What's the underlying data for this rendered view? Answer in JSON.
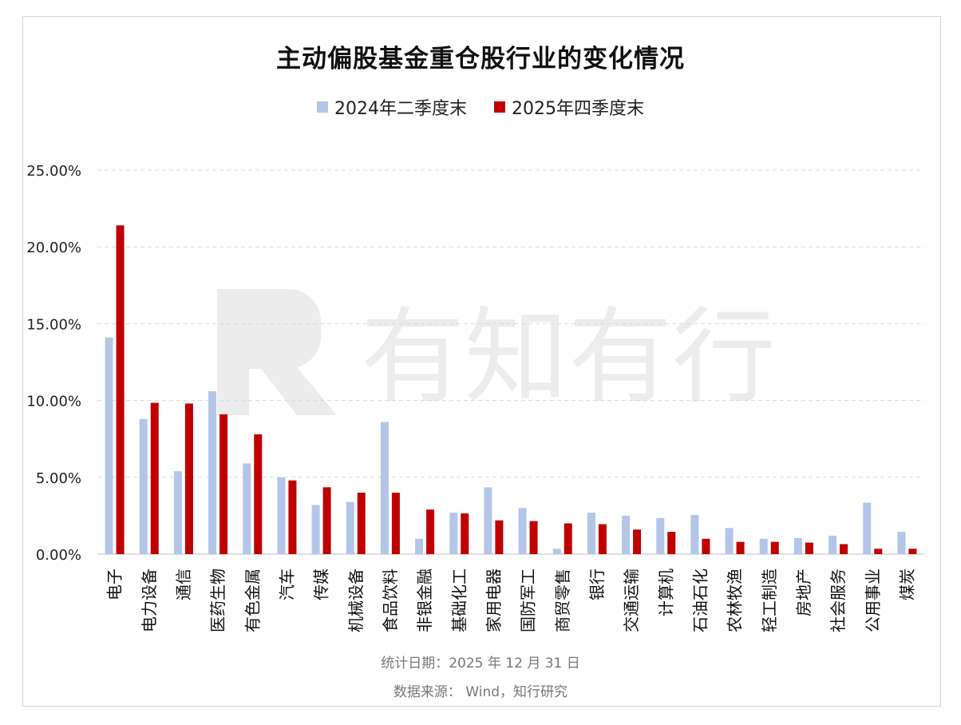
{
  "chart_data": {
    "type": "bar",
    "title": "主动偏股基金重仓股行业的变化情况",
    "categories": [
      "电子",
      "电力设备",
      "通信",
      "医药生物",
      "有色金属",
      "汽车",
      "传媒",
      "机械设备",
      "食品饮料",
      "非银金融",
      "基础化工",
      "家用电器",
      "国防军工",
      "商贸零售",
      "银行",
      "交通运输",
      "计算机",
      "石油石化",
      "农林牧渔",
      "轻工制造",
      "房地产",
      "社会服务",
      "公用事业",
      "煤炭"
    ],
    "series": [
      {
        "name": "2024年二季度末",
        "color": "#b4c6e7",
        "values": [
          14.1,
          8.8,
          5.4,
          10.6,
          5.9,
          5.0,
          3.2,
          3.4,
          8.6,
          1.0,
          2.7,
          4.35,
          3.0,
          0.35,
          2.7,
          2.5,
          2.35,
          2.55,
          1.7,
          1.0,
          1.05,
          1.2,
          3.35,
          1.45
        ]
      },
      {
        "name": "2025年四季度末",
        "color": "#c00000",
        "values": [
          21.4,
          9.85,
          9.8,
          9.1,
          7.8,
          4.8,
          4.35,
          4.0,
          4.0,
          2.9,
          2.65,
          2.2,
          2.15,
          2.0,
          1.95,
          1.6,
          1.45,
          1.0,
          0.8,
          0.8,
          0.75,
          0.65,
          0.35,
          0.35
        ]
      }
    ],
    "yticks": [
      "0.00%",
      "5.00%",
      "10.00%",
      "15.00%",
      "20.00%",
      "25.00%"
    ],
    "ylim": [
      0,
      25
    ],
    "grid": true,
    "legend": "top-center"
  },
  "footer": {
    "date": "统计日期：2025 年 12 月 31 日",
    "source": "数据来源： Wind，知行研究"
  },
  "watermark": {
    "text": "有知有行"
  }
}
